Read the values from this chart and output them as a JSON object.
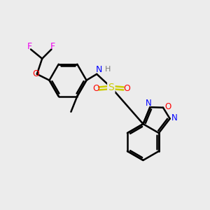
{
  "background_color": "#ececec",
  "atom_colors": {
    "C": "#000000",
    "H": "#7a7a7a",
    "N": "#0000ff",
    "O": "#ff0000",
    "S": "#cccc00",
    "F": "#ee00ee"
  },
  "bond_color": "#000000",
  "bond_width": 1.8,
  "figsize": [
    3.0,
    3.0
  ],
  "dpi": 100
}
